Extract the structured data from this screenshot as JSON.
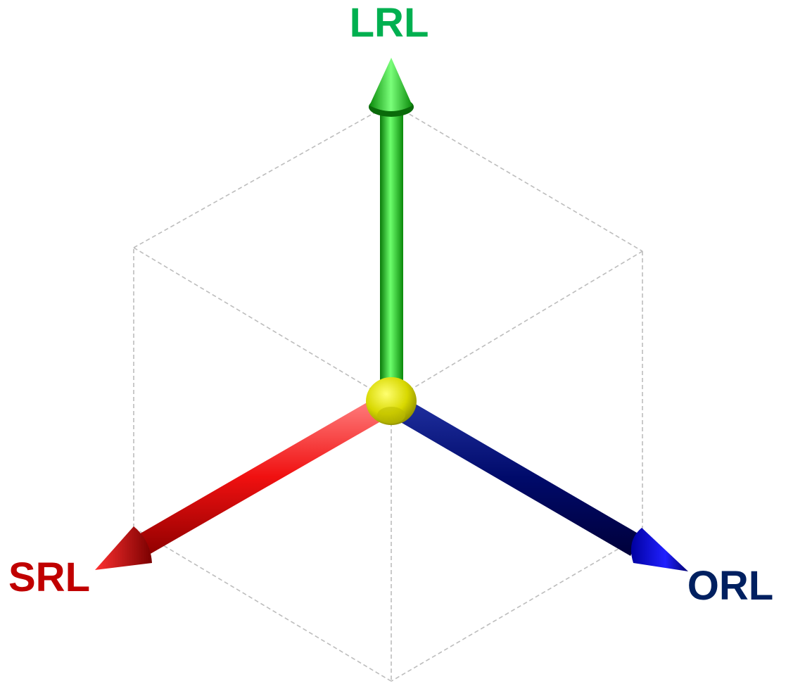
{
  "axes": [
    {
      "id": "lrl",
      "label": "LRL",
      "color": "#00b050",
      "shaft_color": "#16c016",
      "shaft_dark": "#0a7a0a",
      "shaft_light": "#6cff6c"
    },
    {
      "id": "srl",
      "label": "SRL",
      "color": "#c00000",
      "shaft_color": "#f01010",
      "shaft_dark": "#8a0000",
      "shaft_light": "#ff7070"
    },
    {
      "id": "orl",
      "label": "ORL",
      "color": "#002060",
      "shaft_color": "#000a6a",
      "shaft_dark": "#00003a",
      "shaft_light": "#2030b0"
    }
  ],
  "origin_color": "#d8d800"
}
